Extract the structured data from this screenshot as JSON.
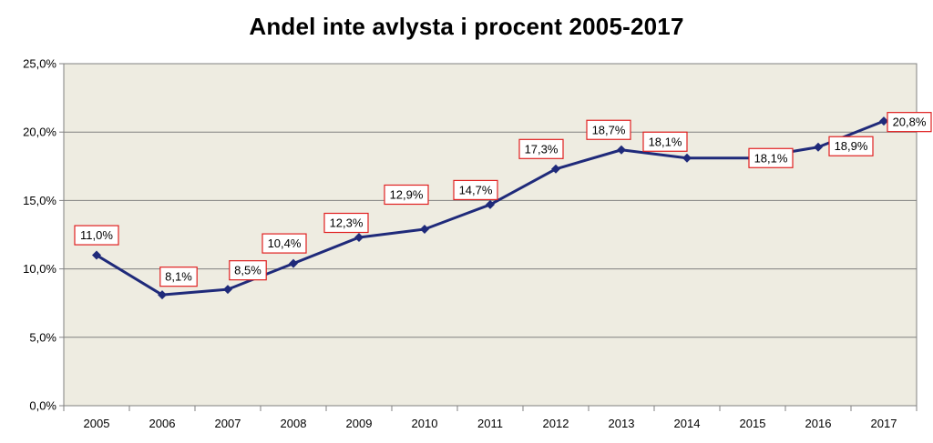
{
  "chart_data": {
    "type": "line",
    "title": "Andel inte avlysta i procent 2005-2017",
    "xlabel": "",
    "ylabel": "",
    "categories": [
      "2005",
      "2006",
      "2007",
      "2008",
      "2009",
      "2010",
      "2011",
      "2012",
      "2013",
      "2014",
      "2015",
      "2016",
      "2017"
    ],
    "series": [
      {
        "values": [
          11.0,
          8.1,
          8.5,
          10.4,
          12.3,
          12.9,
          14.7,
          17.3,
          18.7,
          18.1,
          18.1,
          18.9,
          20.8
        ],
        "labels": [
          "11,0%",
          "8,1%",
          "8,5%",
          "10,4%",
          "12,3%",
          "12,9%",
          "14,7%",
          "17,3%",
          "18,7%",
          "18,1%",
          "18,1%",
          "18,9%",
          "20,8%"
        ]
      }
    ],
    "ylim": [
      0,
      25
    ],
    "yticks": [
      0,
      5,
      10,
      15,
      20,
      25
    ],
    "ytick_labels": [
      "0,0%",
      "5,0%",
      "10,0%",
      "15,0%",
      "20,0%",
      "25,0%"
    ],
    "grid": true,
    "legend": "none",
    "colors": {
      "line": "#1f2a7a",
      "marker": "#1f2a7a",
      "plot_background": "#eeece1",
      "gridline": "#808080",
      "label_border": "#e02020",
      "label_background": "#ffffff"
    }
  }
}
